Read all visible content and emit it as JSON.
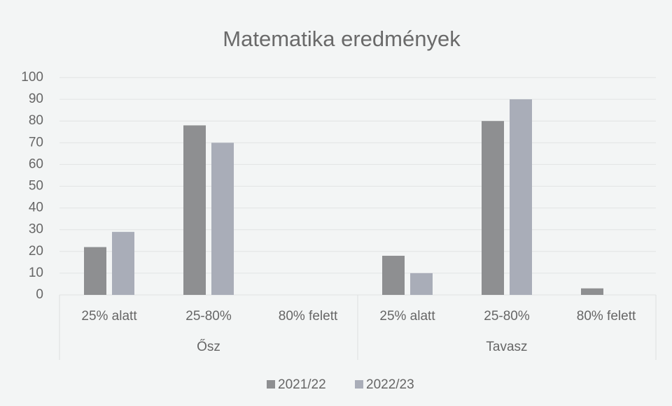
{
  "chart_data": {
    "type": "bar",
    "title": "Matematika eredmények",
    "categories": [
      "25% alatt",
      "25-80%",
      "80% felett",
      "25% alatt",
      "25-80%",
      "80% felett"
    ],
    "category_groups": [
      "Ősz",
      "Tavasz"
    ],
    "series": [
      {
        "name": "2021/22",
        "color": "#8e8f91",
        "values": [
          22,
          78,
          0,
          18,
          80,
          3
        ]
      },
      {
        "name": "2022/23",
        "color": "#a9adb8",
        "values": [
          29,
          70,
          0,
          10,
          90,
          0
        ]
      }
    ],
    "ylim": [
      0,
      100
    ],
    "yticks": [
      0,
      10,
      20,
      30,
      40,
      50,
      60,
      70,
      80,
      90,
      100
    ],
    "grid": true,
    "legend": "bottom"
  }
}
